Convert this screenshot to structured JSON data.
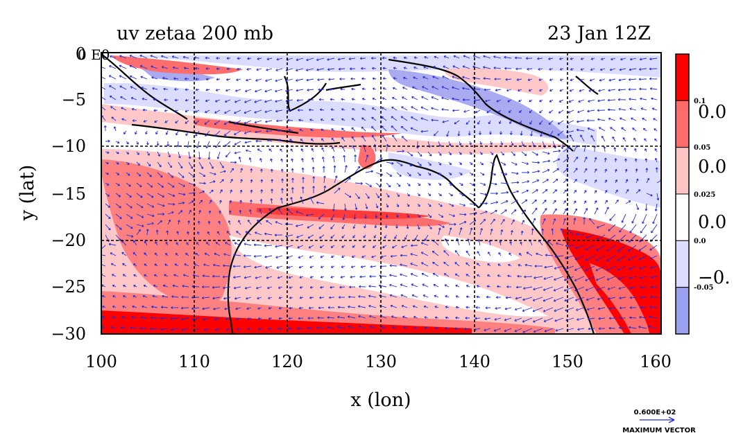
{
  "figure": {
    "title_left": "uv zetaa 200 mb",
    "title_right": "23 Jan 12Z",
    "corner_label": "0 E0",
    "xlabel": "x (lon)",
    "ylabel": "y (lat)"
  },
  "axes": {
    "x_ticks": [
      "100",
      "110",
      "120",
      "130",
      "140",
      "150",
      "160"
    ],
    "y_ticks": [
      "0",
      "−5",
      "−10",
      "−15",
      "−20",
      "−25",
      "−30"
    ]
  },
  "colorbar": {
    "colors": [
      "#ff0000",
      "#ff6b6b",
      "#ffc4c4",
      "#ffffff",
      "#dcdcff",
      "#9aa0f0"
    ],
    "small_labels": [
      "0.1",
      "0.05",
      "0.025",
      "0.0",
      "-0.05"
    ],
    "large_labels": [
      "0.0",
      "0.0",
      "0.0",
      "−0."
    ]
  },
  "vector_legend": {
    "value": "0.600E+02",
    "label": "MAXIMUM VECTOR"
  },
  "palette": {
    "strong_red": "#ff0000",
    "mid_red": "#ff6e6e",
    "light_red": "#ffc8c8",
    "light_blue": "#dcdcff",
    "mid_blue": "#aaaaf0",
    "arrow": "#1f2bd6"
  }
}
